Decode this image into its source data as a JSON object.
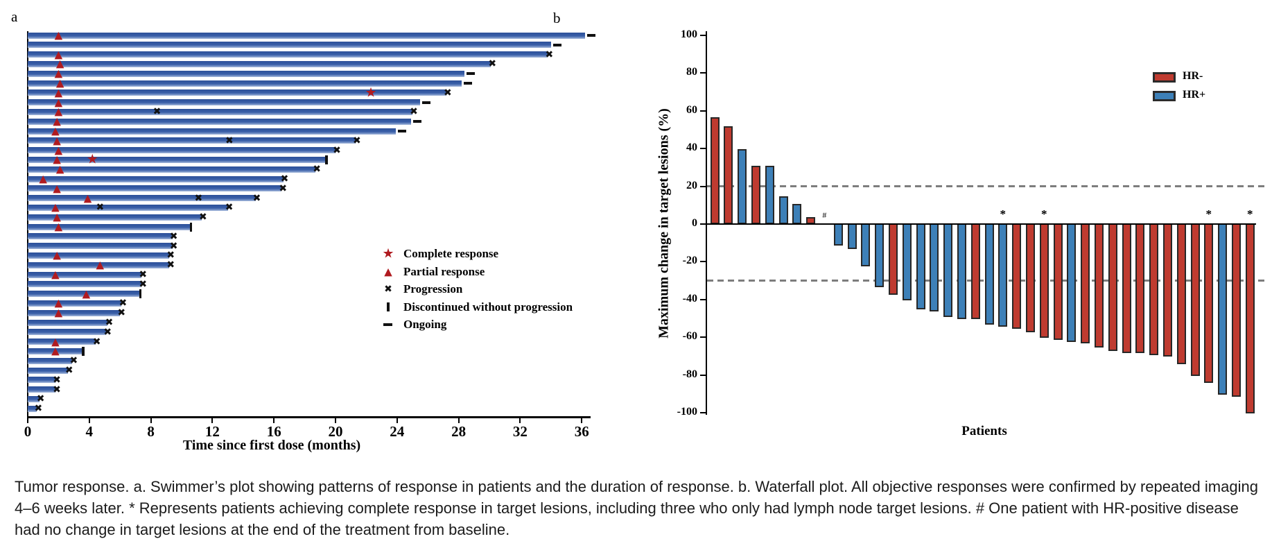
{
  "panel_a": {
    "label": "a",
    "xlabel": "Time since first dose (months)",
    "legend": [
      {
        "icon": "star",
        "label": "Complete response"
      },
      {
        "icon": "triangle",
        "label": "Partial response"
      },
      {
        "icon": "x",
        "label": "Progression"
      },
      {
        "icon": "vertical-bar",
        "label": "Discontinued without progression"
      },
      {
        "icon": "dash",
        "label": "Ongoing"
      }
    ],
    "chart_data": {
      "type": "bar",
      "subtype": "swimmer",
      "orientation": "horizontal",
      "xlabel": "Time since first dose (months)",
      "x_ticks": [
        0,
        4,
        8,
        12,
        16,
        20,
        24,
        28,
        32,
        36
      ],
      "xlim": [
        0,
        36.6
      ],
      "unit": "months",
      "bar_color": "#3A5FA8",
      "marker_colors": {
        "response": "#B01B20",
        "event": "#111111"
      },
      "patients": [
        {
          "duration": 36.2,
          "end_event": "ongoing",
          "pr": [
            2.0
          ]
        },
        {
          "duration": 34.0,
          "end_event": "ongoing"
        },
        {
          "duration": 33.8,
          "end_event": "progression",
          "pr": [
            2.0
          ]
        },
        {
          "duration": 30.1,
          "end_event": "progression",
          "pr": [
            2.1
          ]
        },
        {
          "duration": 28.4,
          "end_event": "ongoing",
          "pr": [
            2.0
          ]
        },
        {
          "duration": 28.2,
          "end_event": "ongoing",
          "pr": [
            2.1
          ]
        },
        {
          "duration": 27.2,
          "end_event": "progression",
          "pr": [
            2.0
          ],
          "cr": [
            22.3
          ]
        },
        {
          "duration": 25.5,
          "end_event": "ongoing",
          "pr": [
            2.0
          ]
        },
        {
          "duration": 25.0,
          "end_event": "progression",
          "pr": [
            2.0
          ],
          "extra_x": [
            8.4
          ]
        },
        {
          "duration": 24.9,
          "end_event": "ongoing",
          "pr": [
            1.9
          ]
        },
        {
          "duration": 23.9,
          "end_event": "ongoing",
          "pr": [
            1.8
          ]
        },
        {
          "duration": 21.3,
          "end_event": "progression",
          "pr": [
            1.9
          ],
          "extra_x": [
            13.1
          ]
        },
        {
          "duration": 20.0,
          "end_event": "progression",
          "pr": [
            2.0
          ]
        },
        {
          "duration": 19.4,
          "end_event": "discontinued",
          "pr": [
            1.9
          ],
          "cr": [
            4.2
          ]
        },
        {
          "duration": 18.7,
          "end_event": "progression",
          "pr": [
            2.1
          ]
        },
        {
          "duration": 16.6,
          "end_event": "progression",
          "pr": [
            1.0
          ]
        },
        {
          "duration": 16.5,
          "end_event": "progression",
          "pr": [
            1.9
          ]
        },
        {
          "duration": 14.8,
          "end_event": "progression",
          "pr": [
            3.9
          ],
          "extra_x": [
            11.1
          ]
        },
        {
          "duration": 13.0,
          "end_event": "progression",
          "pr": [
            1.8
          ],
          "extra_x": [
            4.7
          ]
        },
        {
          "duration": 11.3,
          "end_event": "progression",
          "pr": [
            1.9
          ]
        },
        {
          "duration": 10.6,
          "end_event": "discontinued",
          "pr": [
            2.0
          ]
        },
        {
          "duration": 9.4,
          "end_event": "progression"
        },
        {
          "duration": 9.4,
          "end_event": "progression"
        },
        {
          "duration": 9.2,
          "end_event": "progression",
          "pr": [
            1.9
          ]
        },
        {
          "duration": 9.2,
          "end_event": "progression",
          "pr": [
            4.7
          ]
        },
        {
          "duration": 7.4,
          "end_event": "progression",
          "pr": [
            1.8
          ]
        },
        {
          "duration": 7.4,
          "end_event": "progression"
        },
        {
          "duration": 7.3,
          "end_event": "discontinued",
          "pr": [
            3.8
          ]
        },
        {
          "duration": 6.1,
          "end_event": "progression",
          "pr": [
            2.0
          ]
        },
        {
          "duration": 6.0,
          "end_event": "progression",
          "pr": [
            2.0
          ]
        },
        {
          "duration": 5.2,
          "end_event": "progression"
        },
        {
          "duration": 5.1,
          "end_event": "progression"
        },
        {
          "duration": 4.4,
          "end_event": "progression",
          "pr": [
            1.8
          ]
        },
        {
          "duration": 3.6,
          "end_event": "discontinued",
          "pr": [
            1.8
          ]
        },
        {
          "duration": 2.9,
          "end_event": "progression"
        },
        {
          "duration": 2.6,
          "end_event": "progression"
        },
        {
          "duration": 1.8,
          "end_event": "progression"
        },
        {
          "duration": 1.8,
          "end_event": "progression"
        },
        {
          "duration": 0.75,
          "end_event": "progression"
        },
        {
          "duration": 0.6,
          "end_event": "progression"
        }
      ]
    }
  },
  "panel_b": {
    "label": "b",
    "ylabel": "Maximum change in target lesions (%)",
    "xlabel": "Patients",
    "legend": [
      {
        "label": "HR-",
        "color": "#BF3B30"
      },
      {
        "label": "HR+",
        "color": "#3D80B8"
      }
    ],
    "chart_data": {
      "type": "bar",
      "subtype": "waterfall",
      "ylabel": "Maximum change in target lesions (%)",
      "xlabel": "Patients",
      "ylim": [
        -100,
        100
      ],
      "y_ticks": [
        100,
        80,
        60,
        40,
        20,
        0,
        -20,
        -40,
        -60,
        -80,
        -100
      ],
      "reference_lines": [
        20,
        -30
      ],
      "series_colors": {
        "HR-": "#BF3B30",
        "HR+": "#3D80B8"
      },
      "annotations": {
        "star": "* complete response in target lesions",
        "hash": "# no change from baseline"
      },
      "patients": [
        {
          "value": 56,
          "group": "HR-"
        },
        {
          "value": 51,
          "group": "HR-"
        },
        {
          "value": 39,
          "group": "HR+"
        },
        {
          "value": 30,
          "group": "HR-"
        },
        {
          "value": 30,
          "group": "HR+"
        },
        {
          "value": 14,
          "group": "HR+"
        },
        {
          "value": 10,
          "group": "HR+"
        },
        {
          "value": 3,
          "group": "HR-"
        },
        {
          "value": 0,
          "group": "HR+",
          "annotation": "#"
        },
        {
          "value": -11,
          "group": "HR+"
        },
        {
          "value": -13,
          "group": "HR+"
        },
        {
          "value": -22,
          "group": "HR+"
        },
        {
          "value": -33,
          "group": "HR+"
        },
        {
          "value": -37,
          "group": "HR-"
        },
        {
          "value": -40,
          "group": "HR+"
        },
        {
          "value": -45,
          "group": "HR+"
        },
        {
          "value": -46,
          "group": "HR+"
        },
        {
          "value": -49,
          "group": "HR+"
        },
        {
          "value": -50,
          "group": "HR+"
        },
        {
          "value": -50,
          "group": "HR-"
        },
        {
          "value": -53,
          "group": "HR+"
        },
        {
          "value": -54,
          "group": "HR+",
          "annotation": "*"
        },
        {
          "value": -55,
          "group": "HR-"
        },
        {
          "value": -57,
          "group": "HR-"
        },
        {
          "value": -60,
          "group": "HR-",
          "annotation": "*"
        },
        {
          "value": -61,
          "group": "HR-"
        },
        {
          "value": -62,
          "group": "HR+"
        },
        {
          "value": -63,
          "group": "HR-"
        },
        {
          "value": -65,
          "group": "HR-"
        },
        {
          "value": -67,
          "group": "HR-"
        },
        {
          "value": -68,
          "group": "HR-"
        },
        {
          "value": -68,
          "group": "HR-"
        },
        {
          "value": -69,
          "group": "HR-"
        },
        {
          "value": -70,
          "group": "HR-"
        },
        {
          "value": -74,
          "group": "HR-"
        },
        {
          "value": -80,
          "group": "HR-"
        },
        {
          "value": -84,
          "group": "HR-",
          "annotation": "*"
        },
        {
          "value": -90,
          "group": "HR+"
        },
        {
          "value": -91,
          "group": "HR-"
        },
        {
          "value": -100,
          "group": "HR-",
          "annotation": "*"
        }
      ]
    }
  },
  "caption": {
    "text": "Tumor response. a. Swimmer’s plot showing patterns of response in patients and the duration of response. b. Waterfall plot. All objective responses were confirmed by repeated imaging 4–6 weeks later. * Represents patients achieving complete response in target lesions, including three who only had lymph node target lesions. # One patient with HR-positive disease had no change in target lesions at the end of the treatment from baseline."
  }
}
